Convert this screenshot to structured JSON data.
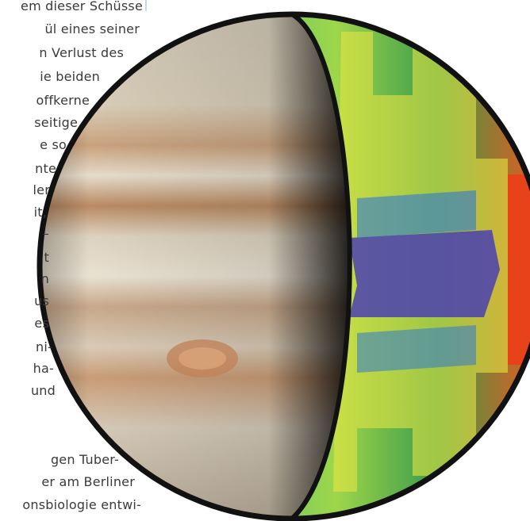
{
  "text_lines": [
    "em dieser Schüsse",
    "ül eines seiner",
    "n Verlust des",
    "ie beiden",
    "offkerne",
    "seitige",
    "e so",
    "nte",
    "ler",
    "it,",
    "–",
    "t",
    "n",
    "us",
    "es",
    "ni-",
    "ha-",
    "und",
    "gen Tuber-",
    "er am Berliner",
    "onsbiologie entwi-"
  ]
}
